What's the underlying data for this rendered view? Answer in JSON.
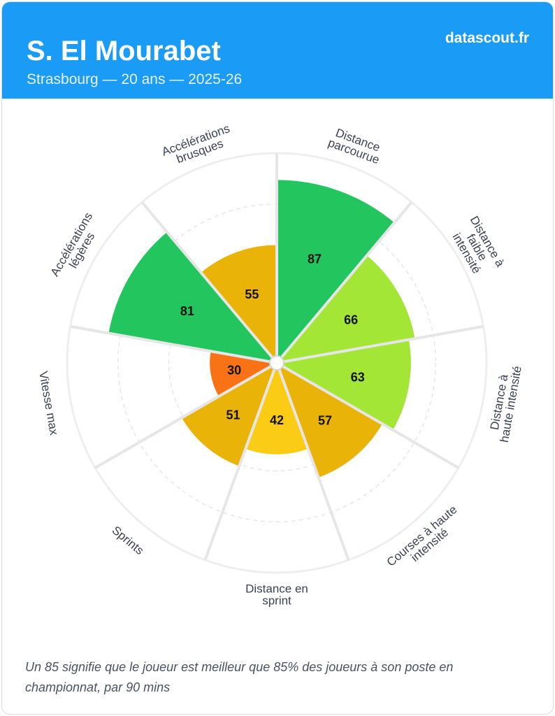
{
  "header": {
    "title": "S. El Mourabet",
    "subtitle": "Strasbourg — 20 ans — 2025-26",
    "brand": "datascout.fr",
    "background": "#1a9bf5"
  },
  "chart_data": {
    "type": "polar-bar",
    "title": "",
    "scale": [
      0,
      100
    ],
    "grid": true,
    "categories": [
      "Distance parcourue",
      "Distance à faible intensité",
      "Distance à haute intensité",
      "Courses à haute intensité",
      "Distance en sprint",
      "Sprints",
      "Vitesse max",
      "Accélérations légères",
      "Accélérations brusques"
    ],
    "category_labels": [
      [
        "Distance",
        "parcourue"
      ],
      [
        "Distance à",
        "faible",
        "intensité"
      ],
      [
        "Distance à",
        "haute intensité"
      ],
      [
        "Courses à haute",
        "intensité"
      ],
      [
        "Distance en",
        "sprint"
      ],
      [
        "Sprints"
      ],
      [
        "Vitesse max"
      ],
      [
        "Accélérations",
        "légères"
      ],
      [
        "Accélérations",
        "brusques"
      ]
    ],
    "values": [
      87,
      66,
      63,
      57,
      42,
      51,
      30,
      81,
      55
    ],
    "colors": [
      "#22c55e",
      "#a3e635",
      "#a3e635",
      "#eab308",
      "#facc15",
      "#eab308",
      "#f97316",
      "#22c55e",
      "#eab308"
    ]
  },
  "footnote": "Un 85 signifie que le joueur est meilleur que 85% des joueurs à son poste en championnat, par 90 mins"
}
